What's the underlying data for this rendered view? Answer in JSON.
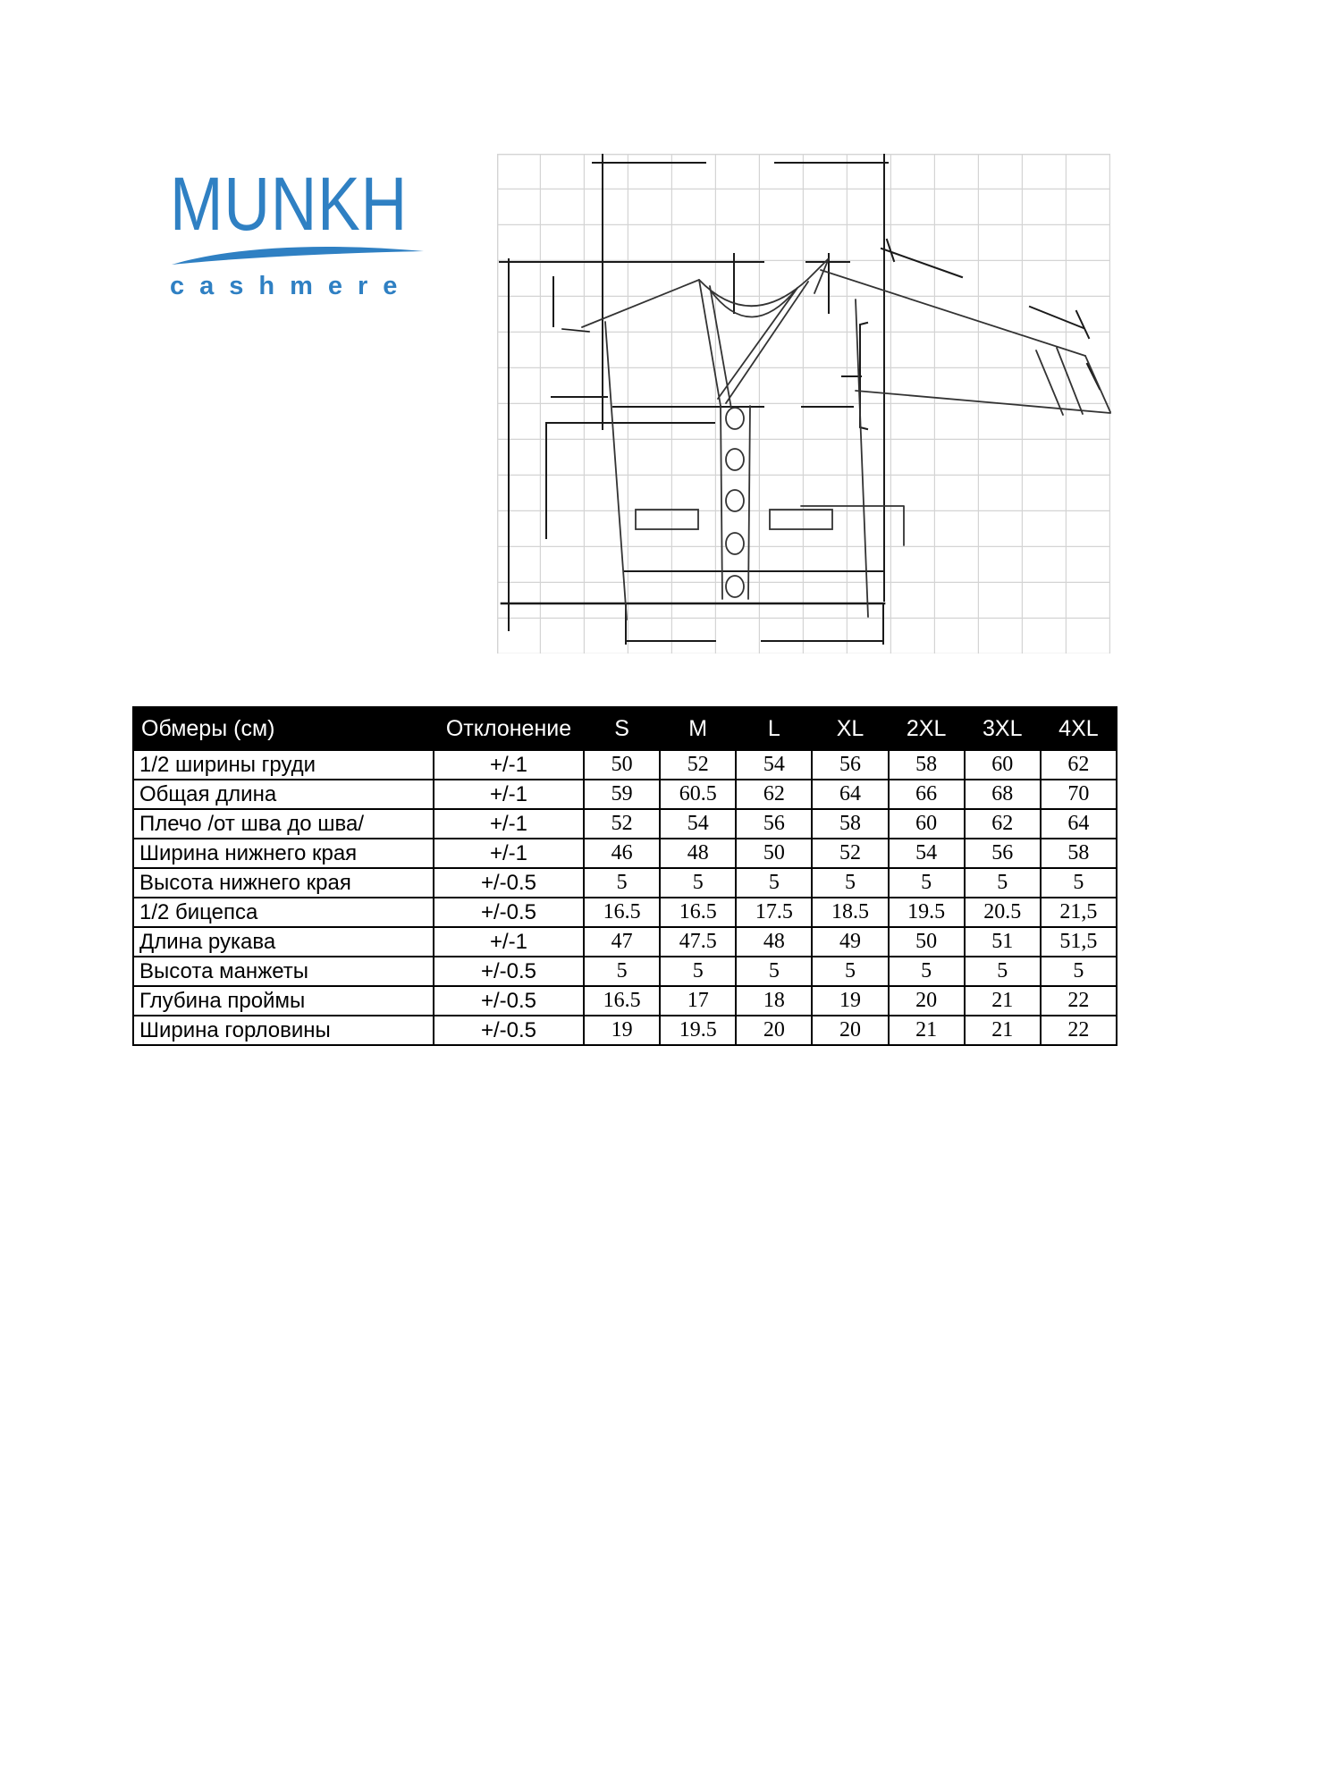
{
  "logo": {
    "brand": "MUNKH",
    "tagline": "cashmere",
    "brand_color": "#2f80c3"
  },
  "drawing": {
    "label": "cardigan technical sketch"
  },
  "size_table": {
    "columns": [
      "Обмеры (см)",
      "Отклонение",
      "S",
      "M",
      "L",
      "XL",
      "2XL",
      "3XL",
      "4XL"
    ],
    "rows": [
      {
        "label": "1/2 ширины груди",
        "tolerance": "+/-1",
        "values": [
          "50",
          "52",
          "54",
          "56",
          "58",
          "60",
          "62"
        ]
      },
      {
        "label": "Общая длина",
        "tolerance": "+/-1",
        "values": [
          "59",
          "60.5",
          "62",
          "64",
          "66",
          "68",
          "70"
        ]
      },
      {
        "label": "Плечо /от шва до шва/",
        "tolerance": "+/-1",
        "values": [
          "52",
          "54",
          "56",
          "58",
          "60",
          "62",
          "64"
        ]
      },
      {
        "label": "Ширина нижнего края",
        "tolerance": "+/-1",
        "values": [
          "46",
          "48",
          "50",
          "52",
          "54",
          "56",
          "58"
        ]
      },
      {
        "label": "Высота нижнего края",
        "tolerance": "+/-0.5",
        "values": [
          "5",
          "5",
          "5",
          "5",
          "5",
          "5",
          "5"
        ]
      },
      {
        "label": "1/2 бицепса",
        "tolerance": "+/-0.5",
        "values": [
          "16.5",
          "16.5",
          "17.5",
          "18.5",
          "19.5",
          "20.5",
          "21,5"
        ]
      },
      {
        "label": "Длина рукава",
        "tolerance": "+/-1",
        "values": [
          "47",
          "47.5",
          "48",
          "49",
          "50",
          "51",
          "51,5"
        ]
      },
      {
        "label": "Высота манжеты",
        "tolerance": "+/-0.5",
        "values": [
          "5",
          "5",
          "5",
          "5",
          "5",
          "5",
          "5"
        ]
      },
      {
        "label": "Глубина проймы",
        "tolerance": "+/-0.5",
        "values": [
          "16.5",
          "17",
          "18",
          "19",
          "20",
          "21",
          "22"
        ]
      },
      {
        "label": "Ширина горловины",
        "tolerance": "+/-0.5",
        "values": [
          "19",
          "19.5",
          "20",
          "20",
          "21",
          "21",
          "22"
        ]
      }
    ]
  }
}
